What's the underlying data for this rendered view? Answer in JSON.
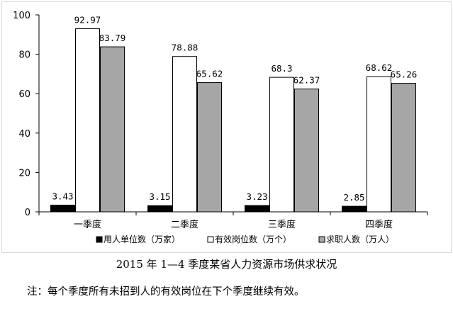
{
  "chart_data": {
    "type": "bar",
    "categories": [
      "一季度",
      "二季度",
      "三季度",
      "四季度"
    ],
    "series": [
      {
        "name": "用人单位数（万家）",
        "values": [
          3.43,
          3.15,
          3.23,
          2.85
        ],
        "color": "#000000",
        "labels": [
          "3.43",
          "3.15",
          "3.23",
          "2.85"
        ]
      },
      {
        "name": "有效岗位数（万个）",
        "values": [
          92.97,
          78.88,
          68.3,
          68.62
        ],
        "color": "#ffffff",
        "labels": [
          "92.97",
          "78.88",
          "68.3",
          "68.62"
        ]
      },
      {
        "name": "求职人数（万人）",
        "values": [
          83.79,
          65.62,
          62.37,
          65.26
        ],
        "color": "#a6a6a6",
        "labels": [
          "83.79",
          "65.62",
          "62.37",
          "65.26"
        ]
      }
    ],
    "yticks": [
      "0",
      "20",
      "40",
      "60",
      "80",
      "100"
    ],
    "ylim": [
      0,
      100
    ],
    "legend": "bottom",
    "grid": false
  },
  "caption": "2015 年 1—4 季度某省人力资源市场供求状况",
  "note": "注：每个季度所有未招到人的有效岗位在下个季度继续有效。"
}
